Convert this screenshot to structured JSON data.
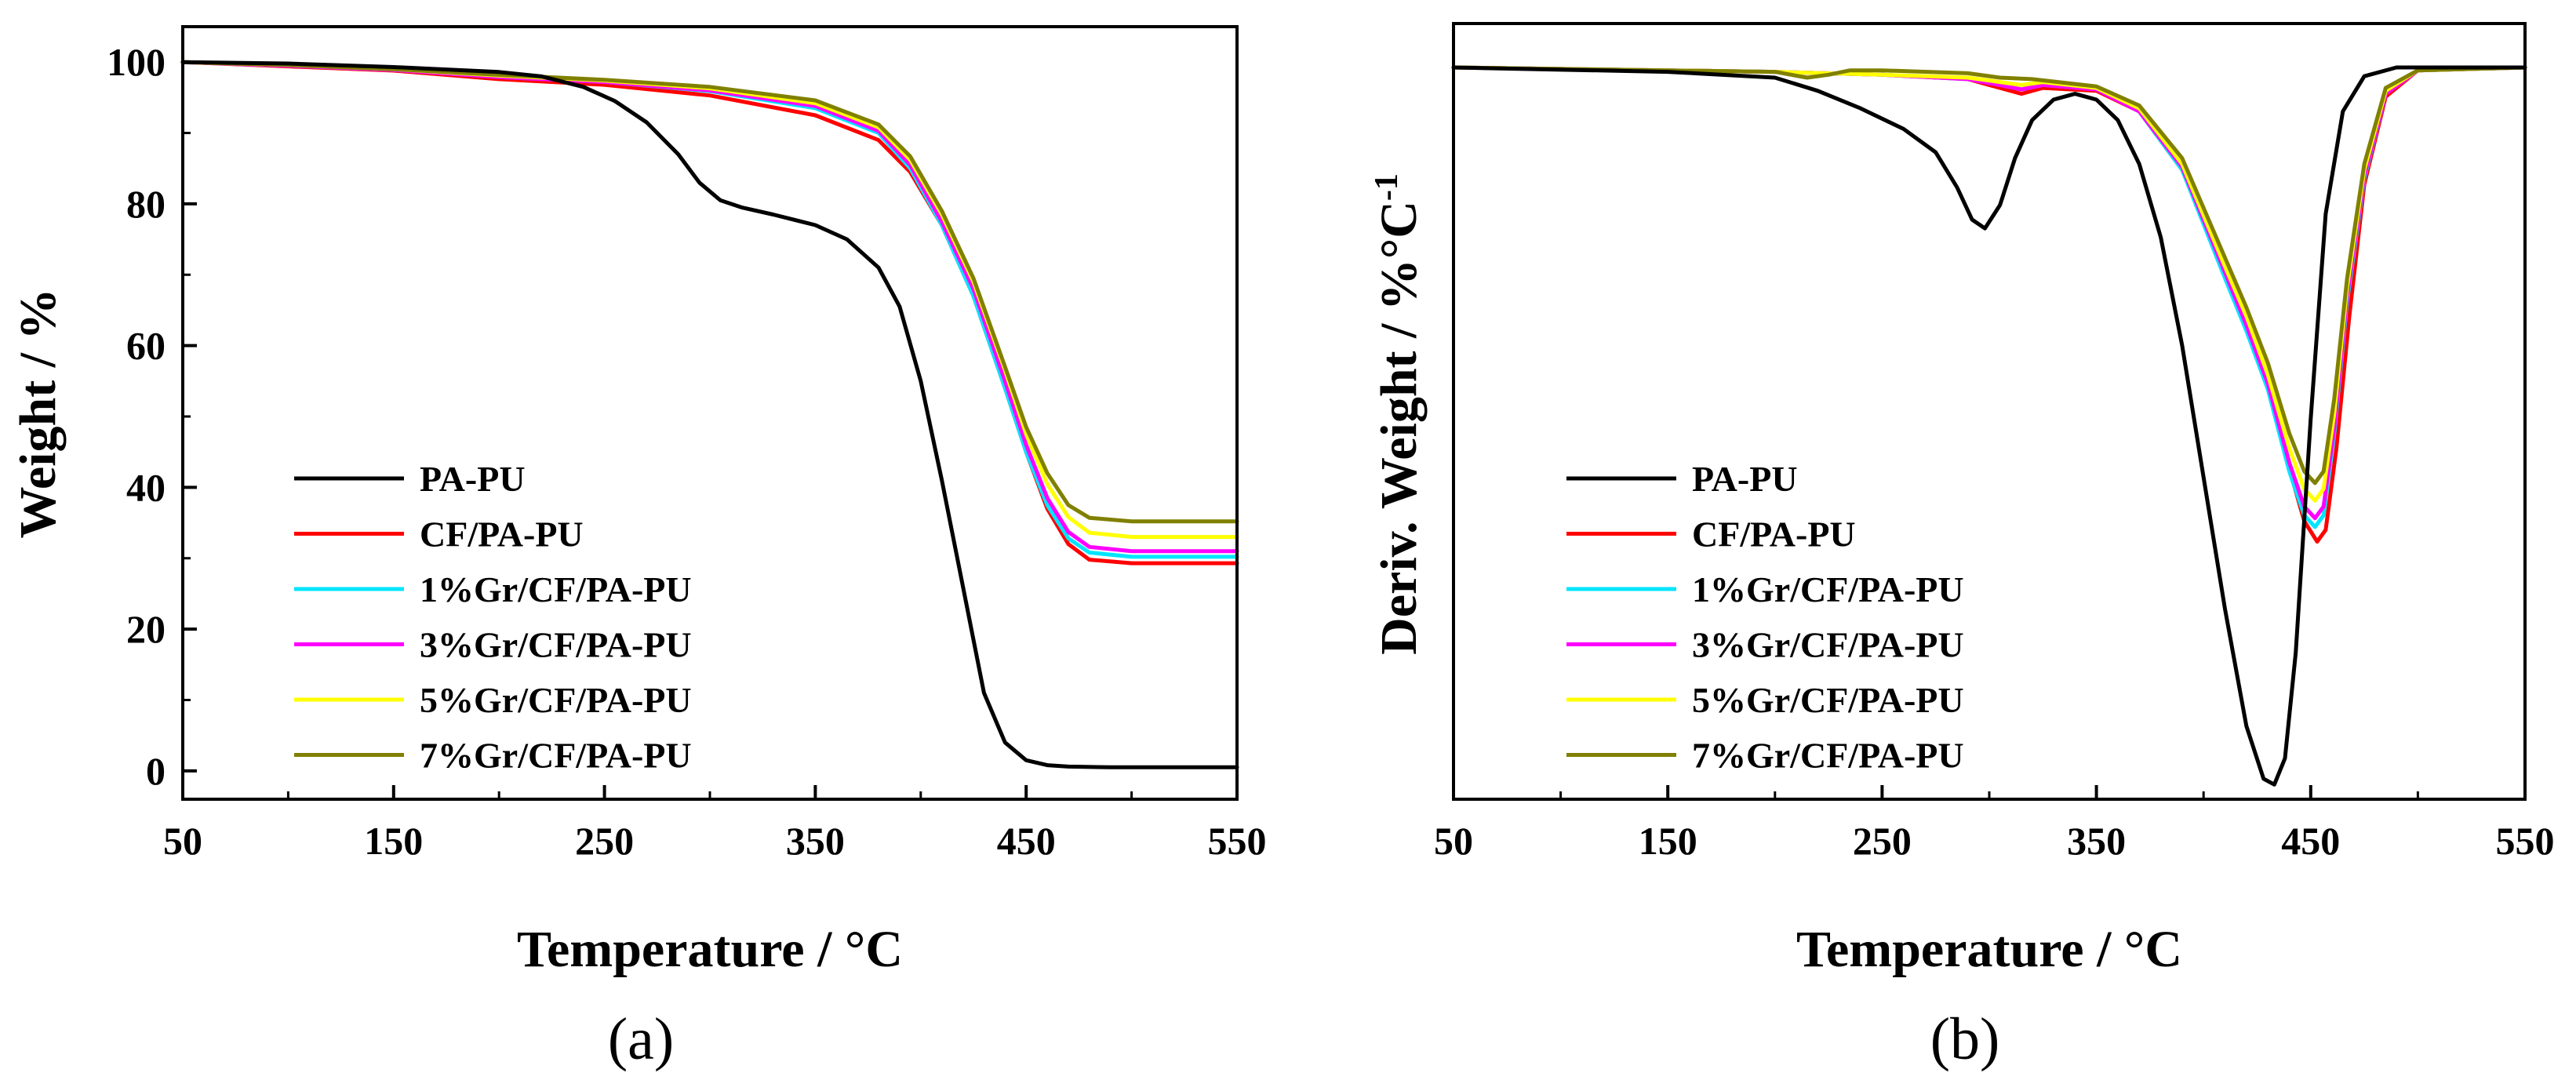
{
  "chart_data": [
    {
      "id": "a",
      "type": "line",
      "caption": "(a)",
      "xlabel": "Temperature / °C",
      "ylabel": "Weight / %",
      "xlim": [
        50,
        550
      ],
      "ylim": [
        -4,
        105
      ],
      "xticks": [
        50,
        150,
        250,
        350,
        450,
        550
      ],
      "xtick_labels": [
        "50",
        "150",
        "250",
        "350",
        "450",
        "550"
      ],
      "xminor": [
        100,
        200,
        300,
        400,
        500
      ],
      "yticks": [
        0,
        20,
        40,
        60,
        80,
        100
      ],
      "ytick_labels": [
        "0",
        "20",
        "40",
        "60",
        "80",
        "100"
      ],
      "yminor": [
        10,
        30,
        50,
        70,
        90
      ],
      "legend_position": "lower-left",
      "series": [
        {
          "name": "PA-PU",
          "color": "#000000",
          "x": [
            50,
            100,
            150,
            200,
            220,
            240,
            255,
            270,
            285,
            295,
            305,
            315,
            330,
            350,
            365,
            380,
            390,
            400,
            410,
            420,
            430,
            440,
            450,
            460,
            470,
            490,
            510,
            550
          ],
          "y": [
            100,
            99.8,
            99.3,
            98.6,
            98,
            96.5,
            94.5,
            91.5,
            87,
            83,
            80.5,
            79.5,
            78.5,
            77,
            75,
            71,
            65.5,
            55,
            41,
            26,
            11,
            4,
            1.5,
            0.8,
            0.6,
            0.5,
            0.5,
            0.5
          ]
        },
        {
          "name": "CF/PA-PU",
          "color": "#ff0000",
          "x": [
            50,
            100,
            150,
            200,
            250,
            300,
            350,
            380,
            395,
            410,
            425,
            440,
            450,
            460,
            470,
            480,
            500,
            550
          ],
          "y": [
            100,
            99.4,
            98.8,
            97.6,
            96.8,
            95.3,
            92.5,
            89,
            84.5,
            77,
            67,
            54,
            45,
            37,
            32,
            29.8,
            29.3,
            29.3
          ]
        },
        {
          "name": "1%Gr/CF/PA-PU",
          "color": "#00e5ff",
          "x": [
            50,
            100,
            150,
            200,
            250,
            300,
            350,
            380,
            395,
            410,
            425,
            440,
            450,
            460,
            470,
            480,
            500,
            550
          ],
          "y": [
            100,
            99.5,
            98.9,
            97.9,
            97.2,
            95.9,
            93.5,
            90,
            85,
            77,
            67,
            54,
            45,
            37.5,
            32.8,
            30.8,
            30.2,
            30.2
          ]
        },
        {
          "name": "3%Gr/CF/PA-PU",
          "color": "#ff00ff",
          "x": [
            50,
            100,
            150,
            200,
            250,
            300,
            350,
            380,
            395,
            410,
            425,
            440,
            450,
            460,
            470,
            480,
            500,
            550
          ],
          "y": [
            100,
            99.5,
            98.9,
            97.9,
            97.2,
            96,
            93.8,
            90.3,
            85.5,
            77.5,
            68,
            55,
            46,
            38.5,
            33.7,
            31.6,
            31,
            31
          ]
        },
        {
          "name": "5%Gr/CF/PA-PU",
          "color": "#ffff00",
          "x": [
            50,
            100,
            150,
            200,
            250,
            300,
            350,
            380,
            395,
            410,
            425,
            440,
            450,
            460,
            470,
            480,
            500,
            550
          ],
          "y": [
            100,
            99.6,
            99,
            98.1,
            97.4,
            96.3,
            94.2,
            90.8,
            86.2,
            78.5,
            69,
            56.5,
            47.5,
            40.5,
            35.8,
            33.6,
            33,
            33
          ]
        },
        {
          "name": "7%Gr/CF/PA-PU",
          "color": "#808000",
          "x": [
            50,
            100,
            150,
            200,
            250,
            300,
            350,
            380,
            395,
            410,
            425,
            440,
            450,
            460,
            470,
            480,
            500,
            550
          ],
          "y": [
            100,
            99.6,
            99,
            98.2,
            97.5,
            96.5,
            94.6,
            91.2,
            86.7,
            79,
            69.5,
            57,
            48.5,
            42,
            37.5,
            35.7,
            35.2,
            35.2
          ]
        }
      ]
    },
    {
      "id": "b",
      "type": "line",
      "caption": "(b)",
      "xlabel": "Temperature / °C",
      "ylabel": "Deriv. Weight / %°C",
      "ylabel_superscript": "-1",
      "xlim": [
        50,
        550
      ],
      "ylim": [
        -25,
        1.5
      ],
      "xticks": [
        50,
        150,
        250,
        350,
        450,
        550
      ],
      "xtick_labels": [
        "50",
        "150",
        "250",
        "350",
        "450",
        "550"
      ],
      "xminor": [
        100,
        200,
        300,
        400,
        500
      ],
      "yticks": [],
      "ytick_labels": [],
      "legend_position": "lower-left",
      "series": [
        {
          "name": "PA-PU",
          "color": "#000000",
          "x": [
            50,
            150,
            200,
            220,
            240,
            260,
            275,
            285,
            292,
            298,
            305,
            312,
            320,
            330,
            340,
            350,
            360,
            370,
            380,
            390,
            400,
            410,
            420,
            428,
            433,
            438,
            443,
            450,
            457,
            465,
            475,
            490,
            550
          ],
          "y": [
            0,
            -0.15,
            -0.35,
            -0.8,
            -1.4,
            -2.1,
            -2.9,
            -4.1,
            -5.2,
            -5.5,
            -4.7,
            -3.1,
            -1.8,
            -1.1,
            -0.9,
            -1.1,
            -1.8,
            -3.3,
            -5.8,
            -9.5,
            -14,
            -18.5,
            -22.5,
            -24.3,
            -24.5,
            -23.6,
            -20,
            -12,
            -5,
            -1.5,
            -0.3,
            0,
            0
          ]
        },
        {
          "name": "CF/PA-PU",
          "color": "#ff0000",
          "x": [
            50,
            200,
            250,
            290,
            305,
            315,
            325,
            350,
            370,
            390,
            410,
            420,
            430,
            440,
            447,
            453,
            457,
            462,
            468,
            475,
            485,
            500,
            550
          ],
          "y": [
            0,
            -0.15,
            -0.25,
            -0.4,
            -0.7,
            -0.9,
            -0.7,
            -0.8,
            -1.5,
            -3.5,
            -7,
            -8.7,
            -10.8,
            -13.7,
            -15.5,
            -16.2,
            -15.8,
            -13,
            -8.5,
            -4,
            -1,
            -0.1,
            0
          ]
        },
        {
          "name": "1%Gr/CF/PA-PU",
          "color": "#00e5ff",
          "x": [
            50,
            200,
            250,
            290,
            305,
            315,
            325,
            350,
            370,
            390,
            410,
            420,
            430,
            440,
            447,
            452,
            456,
            461,
            467,
            475,
            485,
            500,
            550
          ],
          "y": [
            0,
            -0.15,
            -0.25,
            -0.4,
            -0.6,
            -0.75,
            -0.6,
            -0.75,
            -1.5,
            -3.5,
            -7.2,
            -9,
            -11,
            -13.8,
            -15.3,
            -15.7,
            -15.3,
            -12.5,
            -8,
            -3.8,
            -0.9,
            -0.1,
            0
          ]
        },
        {
          "name": "3%Gr/CF/PA-PU",
          "color": "#ff00ff",
          "x": [
            50,
            200,
            250,
            290,
            305,
            315,
            325,
            350,
            370,
            390,
            410,
            420,
            430,
            440,
            447,
            452,
            456,
            461,
            467,
            475,
            485,
            500,
            550
          ],
          "y": [
            0,
            -0.15,
            -0.25,
            -0.4,
            -0.6,
            -0.75,
            -0.6,
            -0.75,
            -1.5,
            -3.4,
            -7,
            -8.8,
            -10.8,
            -13.5,
            -15,
            -15.4,
            -15,
            -12.3,
            -7.8,
            -3.7,
            -0.9,
            -0.1,
            0
          ]
        },
        {
          "name": "5%Gr/CF/PA-PU",
          "color": "#ffff00",
          "x": [
            50,
            200,
            250,
            290,
            305,
            315,
            325,
            350,
            370,
            390,
            410,
            420,
            430,
            440,
            447,
            452,
            456,
            461,
            467,
            475,
            485,
            500,
            550
          ],
          "y": [
            0,
            -0.15,
            -0.25,
            -0.35,
            -0.5,
            -0.6,
            -0.5,
            -0.7,
            -1.4,
            -3.3,
            -6.8,
            -8.5,
            -10.5,
            -13,
            -14.4,
            -14.8,
            -14.4,
            -11.8,
            -7.5,
            -3.5,
            -0.8,
            -0.1,
            0
          ]
        },
        {
          "name": "7%Gr/CF/PA-PU",
          "color": "#808000",
          "x": [
            50,
            200,
            215,
            225,
            235,
            250,
            290,
            305,
            320,
            350,
            370,
            390,
            410,
            420,
            430,
            440,
            447,
            452,
            456,
            461,
            467,
            475,
            485,
            500,
            550
          ],
          "y": [
            0,
            -0.15,
            -0.35,
            -0.25,
            -0.1,
            -0.1,
            -0.2,
            -0.35,
            -0.4,
            -0.65,
            -1.3,
            -3.1,
            -6.5,
            -8.2,
            -10.1,
            -12.5,
            -13.8,
            -14.2,
            -13.8,
            -11.3,
            -7.2,
            -3.3,
            -0.7,
            -0.1,
            0
          ]
        }
      ]
    }
  ]
}
